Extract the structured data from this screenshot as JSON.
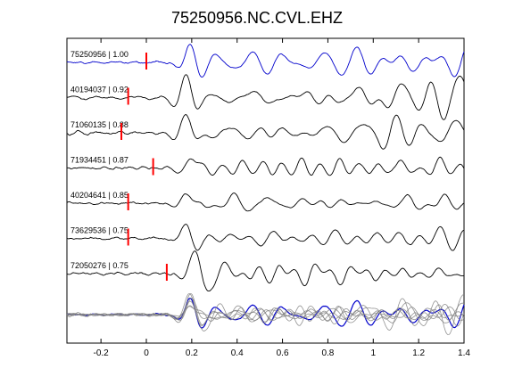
{
  "chart_data": {
    "type": "line",
    "title": "75250956.NC.CVL.EHZ",
    "xlabel": "",
    "ylabel": "",
    "xlim": [
      -0.35,
      1.4
    ],
    "x_ticks": [
      -0.2,
      0,
      0.2,
      0.4,
      0.6,
      0.8,
      1,
      1.2,
      1.4
    ],
    "x_tick_labels": [
      "-0.2",
      "0",
      "0.2",
      "0.4",
      "0.6",
      "0.8",
      "1",
      "1.2",
      "1.4"
    ],
    "grid": false,
    "reference_color": "#0000cc",
    "trace_color": "#000000",
    "stack_color": "#808080",
    "pick_color": "#ff0000",
    "traces": [
      {
        "label": "75250956 | 1.00",
        "pick_time": 0.0,
        "color": "#0000cc"
      },
      {
        "label": "40194037 | 0.92",
        "pick_time": -0.08,
        "color": "#000000"
      },
      {
        "label": "71060135 | 0.88",
        "pick_time": -0.11,
        "color": "#000000"
      },
      {
        "label": "71934451 | 0.87",
        "pick_time": 0.03,
        "color": "#000000"
      },
      {
        "label": "40204641 | 0.85",
        "pick_time": -0.08,
        "color": "#000000"
      },
      {
        "label": "73629536 | 0.75",
        "pick_time": -0.08,
        "color": "#000000"
      },
      {
        "label": "72050276 | 0.75",
        "pick_time": 0.09,
        "color": "#000000"
      }
    ]
  }
}
